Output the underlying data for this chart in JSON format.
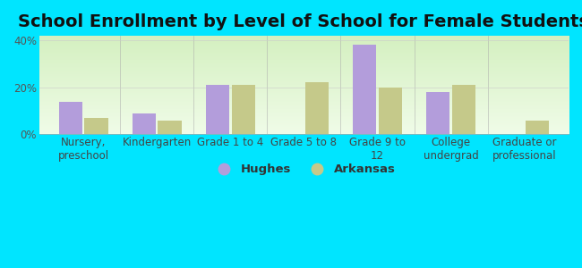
{
  "title": "School Enrollment by Level of School for Female Students",
  "categories": [
    "Nursery,\npreschool",
    "Kindergarten",
    "Grade 1 to 4",
    "Grade 5 to 8",
    "Grade 9 to\n12",
    "College\nundergrad",
    "Graduate or\nprofessional"
  ],
  "hughes_values": [
    14,
    9,
    21,
    0,
    38,
    18,
    0
  ],
  "arkansas_values": [
    7,
    6,
    21,
    22,
    20,
    21,
    6
  ],
  "hughes_color": "#b39ddb",
  "arkansas_color": "#c5c98a",
  "ylim": [
    0,
    42
  ],
  "yticks": [
    0,
    20,
    40
  ],
  "ytick_labels": [
    "0%",
    "20%",
    "40%"
  ],
  "background_color": "#00e5ff",
  "legend_labels": [
    "Hughes",
    "Arkansas"
  ],
  "title_fontsize": 14,
  "tick_fontsize": 8.5,
  "bar_width": 0.32
}
